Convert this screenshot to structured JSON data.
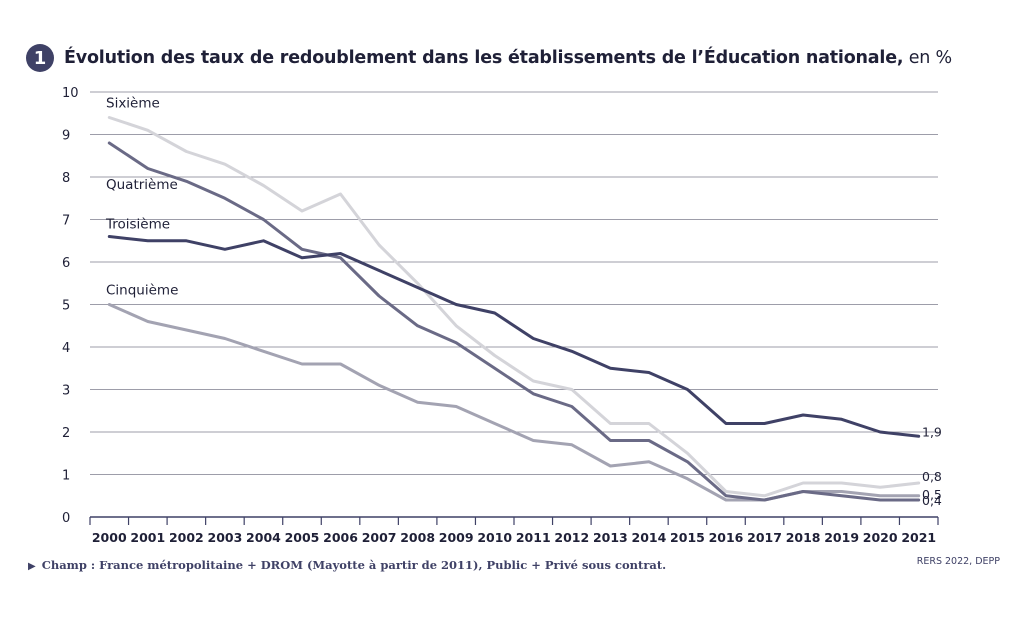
{
  "header": {
    "number": "1",
    "title": "Évolution des taux de redoublement dans les établissements de l’Éducation nationale,",
    "unit": " en %"
  },
  "footer": {
    "note": "Champ : France métropolitaine + DROM (Mayotte à partir de 2011), Public + Privé sous contrat.",
    "source": "RERS 2022, DEPP"
  },
  "chart_data": {
    "type": "line",
    "x": [
      2000,
      2001,
      2002,
      2003,
      2004,
      2005,
      2006,
      2007,
      2008,
      2009,
      2010,
      2011,
      2012,
      2013,
      2014,
      2015,
      2016,
      2017,
      2018,
      2019,
      2020,
      2021
    ],
    "ylim": [
      0,
      10
    ],
    "yticks": [
      0,
      1,
      2,
      3,
      4,
      5,
      6,
      7,
      8,
      9,
      10
    ],
    "grid": true,
    "series": [
      {
        "name": "Sixième",
        "color": "#d4d4d9",
        "end_label": "0,8",
        "values": [
          9.4,
          9.1,
          8.6,
          8.3,
          7.8,
          7.2,
          7.6,
          6.4,
          5.5,
          4.5,
          3.8,
          3.2,
          3.0,
          2.2,
          2.2,
          1.5,
          0.6,
          0.5,
          0.8,
          0.8,
          0.7,
          0.8
        ]
      },
      {
        "name": "Cinquième",
        "color": "#a3a3b2",
        "end_label": "0,5",
        "values": [
          5.0,
          4.6,
          4.4,
          4.2,
          3.9,
          3.6,
          3.6,
          3.1,
          2.7,
          2.6,
          2.2,
          1.8,
          1.7,
          1.2,
          1.3,
          0.9,
          0.4,
          0.4,
          0.6,
          0.6,
          0.5,
          0.5
        ]
      },
      {
        "name": "Quatrième",
        "color": "#6a6a86",
        "end_label": "0,4",
        "values": [
          8.8,
          8.2,
          7.9,
          7.5,
          7.0,
          6.3,
          6.1,
          5.2,
          4.5,
          4.1,
          3.5,
          2.9,
          2.6,
          1.8,
          1.8,
          1.3,
          0.5,
          0.4,
          0.6,
          0.5,
          0.4,
          0.4
        ]
      },
      {
        "name": "Troisième",
        "color": "#3f4166",
        "end_label": "1,9",
        "values": [
          6.6,
          6.5,
          6.5,
          6.3,
          6.5,
          6.1,
          6.2,
          5.8,
          5.4,
          5.0,
          4.8,
          4.2,
          3.9,
          3.5,
          3.4,
          3.0,
          2.2,
          2.2,
          2.4,
          2.3,
          2.0,
          1.9
        ]
      }
    ]
  }
}
